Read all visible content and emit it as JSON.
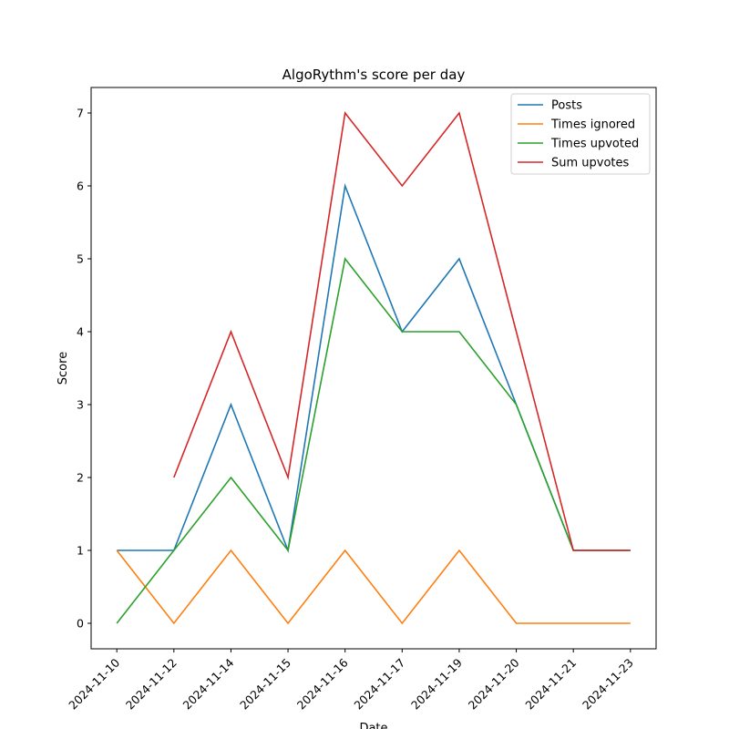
{
  "chart_data": {
    "type": "line",
    "title": "AlgoRythm's score per day",
    "x_label": "Date",
    "y_label": "Score",
    "categories": [
      "2024-11-10",
      "2024-11-12",
      "2024-11-14",
      "2024-11-15",
      "2024-11-16",
      "2024-11-17",
      "2024-11-19",
      "2024-11-20",
      "2024-11-21",
      "2024-11-23"
    ],
    "series": [
      {
        "name": "Posts",
        "color": "#1f77b4",
        "values": [
          1,
          1,
          3,
          1,
          6,
          4,
          5,
          3,
          1,
          1
        ]
      },
      {
        "name": "Times ignored",
        "color": "#ff7f0e",
        "values": [
          1,
          0,
          1,
          0,
          1,
          0,
          1,
          0,
          0,
          0
        ]
      },
      {
        "name": "Times upvoted",
        "color": "#2ca02c",
        "values": [
          0,
          1,
          2,
          1,
          5,
          4,
          4,
          3,
          1,
          1
        ]
      },
      {
        "name": "Sum upvotes",
        "color": "#d62728",
        "values": [
          null,
          2,
          4,
          2,
          7,
          6,
          7,
          4,
          1,
          1
        ]
      }
    ],
    "ylim": [
      -0.35,
      7.35
    ],
    "yticks": [
      0,
      1,
      2,
      3,
      4,
      5,
      6,
      7
    ],
    "grid": false,
    "legend": "upper right"
  }
}
